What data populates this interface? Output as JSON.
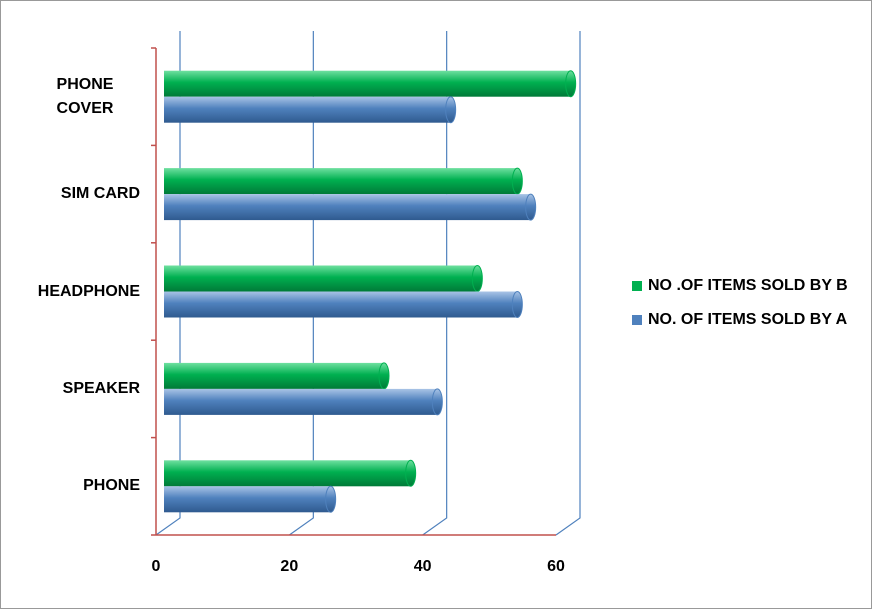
{
  "chart_data": {
    "type": "bar",
    "orientation": "horizontal",
    "categories": [
      "PHONE",
      "SPEAKER",
      "HEADPHONE",
      "SIM CARD",
      "PHONE COVER"
    ],
    "series": [
      {
        "name": "NO .OF ITEMS SOLD BY B",
        "color": "#00b050",
        "values": [
          37,
          33,
          47,
          53,
          61
        ]
      },
      {
        "name": "NO. OF ITEMS SOLD BY A",
        "color": "#4f81bd",
        "values": [
          25,
          41,
          53,
          55,
          43
        ]
      }
    ],
    "xlim": [
      0,
      60
    ],
    "xticks": [
      0,
      20,
      40,
      60
    ],
    "grid": true,
    "legend": "right"
  }
}
